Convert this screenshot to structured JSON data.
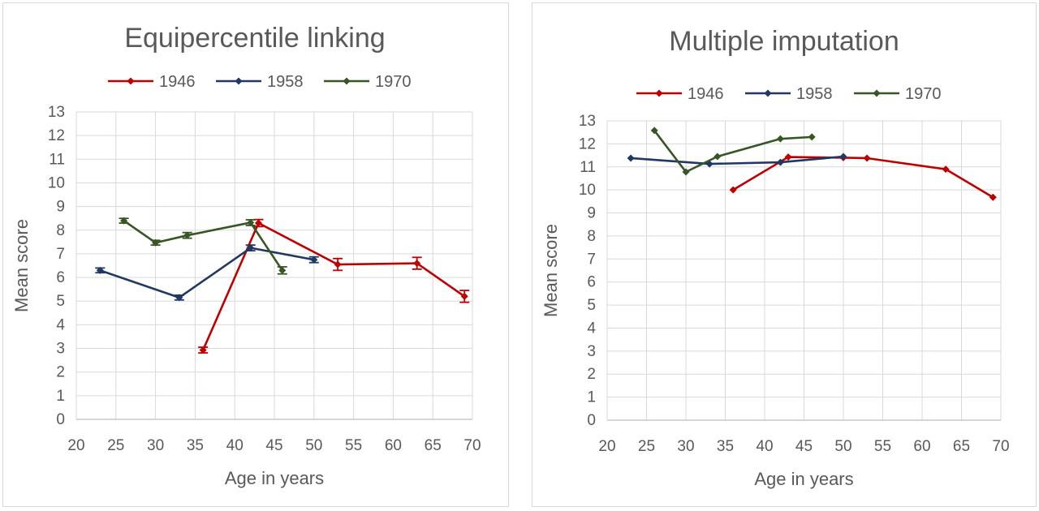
{
  "chart_data": [
    {
      "type": "line",
      "title": "Equipercentile linking",
      "xlabel": "Age in years",
      "ylabel": "Mean score",
      "xlim": [
        20,
        70
      ],
      "ylim": [
        0,
        13
      ],
      "xticks": [
        "20",
        "25",
        "30",
        "35",
        "40",
        "45",
        "50",
        "55",
        "60",
        "65",
        "70"
      ],
      "yticks": [
        "0",
        "1",
        "2",
        "3",
        "4",
        "5",
        "6",
        "7",
        "8",
        "9",
        "10",
        "11",
        "12",
        "13"
      ],
      "grid": true,
      "legend": "top",
      "error_bars": true,
      "series": [
        {
          "name": "1946",
          "color": "#c00000",
          "x": [
            36,
            43,
            53,
            63,
            69
          ],
          "y": [
            2.93,
            8.3,
            6.55,
            6.6,
            5.2
          ],
          "err": [
            0.12,
            0.15,
            0.25,
            0.25,
            0.25
          ]
        },
        {
          "name": "1958",
          "color": "#1f3864",
          "x": [
            23,
            33,
            42,
            50
          ],
          "y": [
            6.3,
            5.15,
            7.25,
            6.75
          ],
          "err": [
            0.1,
            0.1,
            0.12,
            0.12
          ]
        },
        {
          "name": "1970",
          "color": "#375623",
          "x": [
            26,
            30,
            34,
            42,
            46
          ],
          "y": [
            8.4,
            7.47,
            7.78,
            8.32,
            6.3
          ],
          "err": [
            0.1,
            0.1,
            0.12,
            0.12,
            0.15
          ]
        }
      ]
    },
    {
      "type": "line",
      "title": "Multiple imputation",
      "xlabel": "Age in years",
      "ylabel": "Mean score",
      "xlim": [
        20,
        70
      ],
      "ylim": [
        0,
        13
      ],
      "xticks": [
        "20",
        "25",
        "30",
        "35",
        "40",
        "45",
        "50",
        "55",
        "60",
        "65",
        "70"
      ],
      "yticks": [
        "0",
        "1",
        "2",
        "3",
        "4",
        "5",
        "6",
        "7",
        "8",
        "9",
        "10",
        "11",
        "12",
        "13"
      ],
      "grid": true,
      "legend": "top",
      "error_bars": false,
      "series": [
        {
          "name": "1946",
          "color": "#c00000",
          "x": [
            36,
            43,
            50,
            53,
            63,
            69
          ],
          "y": [
            10.0,
            11.43,
            11.4,
            11.38,
            10.9,
            9.68
          ]
        },
        {
          "name": "1958",
          "color": "#1f3864",
          "x": [
            23,
            33,
            42,
            50
          ],
          "y": [
            11.38,
            11.13,
            11.2,
            11.45
          ]
        },
        {
          "name": "1970",
          "color": "#375623",
          "x": [
            26,
            30,
            34,
            42,
            46
          ],
          "y": [
            12.58,
            10.78,
            11.45,
            12.22,
            12.3
          ]
        }
      ]
    }
  ]
}
